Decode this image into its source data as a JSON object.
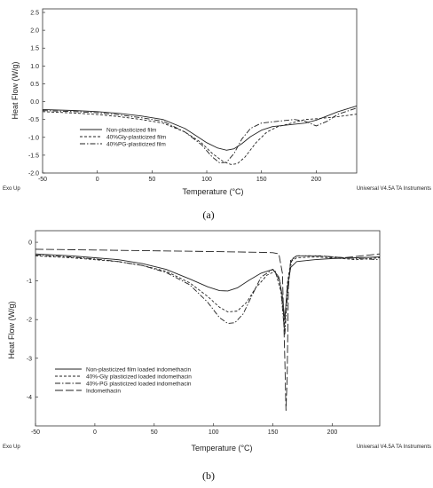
{
  "chart_data": [
    {
      "type": "line",
      "panel_label": "(a)",
      "ylabel": "Heat Flow (W/g)",
      "xlabel": "Temperature (°C)",
      "footer_left": "Exo Up",
      "footer_right": "Universal V4.5A TA Instruments",
      "xlim": [
        -50,
        237
      ],
      "ylim": [
        -2.0,
        2.6
      ],
      "xticks": [
        "-50",
        "0",
        "50",
        "100",
        "150",
        "200"
      ],
      "yticks": [
        "2.5",
        "2.0",
        "1.5",
        "1.0",
        "0.5",
        "0.0",
        "-0.5",
        "-1.0",
        "-1.5",
        "-2.0"
      ],
      "legend_position": "left-inside",
      "series": [
        {
          "name": "Non-plasticized film",
          "dash": "solid",
          "x": [
            -50,
            -20,
            0,
            20,
            40,
            60,
            80,
            90,
            100,
            110,
            118,
            125,
            132,
            140,
            150,
            160,
            175,
            190,
            200,
            210,
            220,
            237
          ],
          "y": [
            -0.22,
            -0.25,
            -0.28,
            -0.33,
            -0.4,
            -0.5,
            -0.75,
            -0.95,
            -1.15,
            -1.3,
            -1.36,
            -1.32,
            -1.18,
            -0.98,
            -0.8,
            -0.7,
            -0.65,
            -0.6,
            -0.52,
            -0.4,
            -0.28,
            -0.12
          ]
        },
        {
          "name": "40%Gly-plasticized film",
          "dash": "dashed",
          "x": [
            -50,
            -20,
            0,
            20,
            40,
            60,
            80,
            95,
            105,
            115,
            122,
            128,
            135,
            145,
            155,
            165,
            175,
            190,
            200,
            210,
            220,
            237
          ],
          "y": [
            -0.28,
            -0.32,
            -0.36,
            -0.42,
            -0.5,
            -0.6,
            -0.85,
            -1.15,
            -1.45,
            -1.68,
            -1.76,
            -1.74,
            -1.55,
            -1.15,
            -0.85,
            -0.7,
            -0.62,
            -0.5,
            -0.48,
            -0.45,
            -0.42,
            -0.35
          ]
        },
        {
          "name": "40%PG-plasticized film",
          "dash": "dashdot",
          "x": [
            -50,
            -20,
            0,
            20,
            40,
            60,
            80,
            95,
            105,
            112,
            118,
            125,
            132,
            140,
            150,
            165,
            180,
            190,
            200,
            210,
            220,
            237
          ],
          "y": [
            -0.25,
            -0.28,
            -0.31,
            -0.37,
            -0.45,
            -0.55,
            -0.85,
            -1.2,
            -1.55,
            -1.72,
            -1.7,
            -1.45,
            -1.05,
            -0.75,
            -0.6,
            -0.55,
            -0.5,
            -0.55,
            -0.68,
            -0.55,
            -0.35,
            -0.18
          ]
        }
      ]
    },
    {
      "type": "line",
      "panel_label": "(b)",
      "ylabel": "Heat Flow (W/g)",
      "xlabel": "Temperature (°C)",
      "footer_left": "Exo Up",
      "footer_right": "Universal V4.5A TA Instruments",
      "xlim": [
        -50,
        240
      ],
      "ylim": [
        -4.75,
        0.3
      ],
      "xticks": [
        "-50",
        "0",
        "50",
        "100",
        "150",
        "200"
      ],
      "yticks": [
        "0",
        "-1",
        "-2",
        "-3",
        "-4"
      ],
      "legend_position": "bottom-left-inside",
      "series": [
        {
          "name": "Non-plasticized film loaded indomethacin",
          "dash": "solid",
          "x": [
            -50,
            -20,
            0,
            20,
            40,
            60,
            80,
            95,
            105,
            112,
            120,
            130,
            140,
            150,
            155,
            158,
            160,
            162,
            165,
            170,
            185,
            200,
            220,
            240
          ],
          "y": [
            -0.3,
            -0.35,
            -0.4,
            -0.45,
            -0.55,
            -0.7,
            -0.95,
            -1.15,
            -1.25,
            -1.26,
            -1.18,
            -0.98,
            -0.8,
            -0.7,
            -0.9,
            -1.4,
            -2.0,
            -1.2,
            -0.65,
            -0.5,
            -0.45,
            -0.42,
            -0.4,
            -0.38
          ]
        },
        {
          "name": "40%-Gly plasticized loaded indomethacin",
          "dash": "dashed",
          "x": [
            -50,
            -20,
            0,
            20,
            40,
            60,
            80,
            95,
            105,
            112,
            120,
            128,
            135,
            145,
            152,
            157,
            160,
            162,
            165,
            170,
            185,
            200,
            220,
            240
          ],
          "y": [
            -0.35,
            -0.4,
            -0.45,
            -0.5,
            -0.6,
            -0.75,
            -1.05,
            -1.4,
            -1.68,
            -1.8,
            -1.78,
            -1.55,
            -1.2,
            -0.85,
            -0.75,
            -1.3,
            -2.2,
            -1.1,
            -0.5,
            -0.4,
            -0.38,
            -0.4,
            -0.45,
            -0.4
          ]
        },
        {
          "name": "40%-PG plasticized loaded indomethacin",
          "dash": "dashdot",
          "x": [
            -50,
            -20,
            0,
            20,
            40,
            60,
            80,
            95,
            105,
            112,
            118,
            125,
            132,
            140,
            150,
            156,
            160,
            163,
            166,
            170,
            185,
            200,
            220,
            240
          ],
          "y": [
            -0.33,
            -0.38,
            -0.43,
            -0.5,
            -0.6,
            -0.78,
            -1.1,
            -1.55,
            -1.95,
            -2.1,
            -2.08,
            -1.85,
            -1.4,
            -0.9,
            -0.7,
            -1.0,
            -2.4,
            -1.0,
            -0.45,
            -0.35,
            -0.35,
            -0.38,
            -0.42,
            -0.45
          ]
        },
        {
          "name": "Indomethacin",
          "dash": "longdash",
          "x": [
            -50,
            0,
            50,
            100,
            140,
            150,
            155,
            158,
            160,
            161,
            162,
            163,
            165,
            170,
            190,
            210,
            240
          ],
          "y": [
            -0.18,
            -0.2,
            -0.22,
            -0.24,
            -0.26,
            -0.27,
            -0.3,
            -0.8,
            -3.0,
            -4.35,
            -3.5,
            -1.2,
            -0.45,
            -0.35,
            -0.35,
            -0.4,
            -0.3
          ]
        }
      ]
    }
  ]
}
